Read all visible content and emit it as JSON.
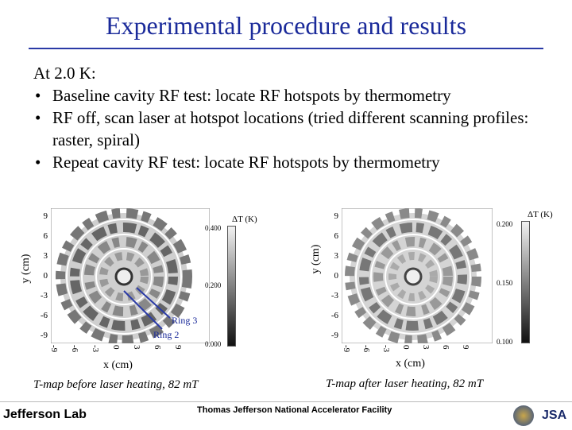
{
  "title": "Experimental procedure and results",
  "intro": "At 2.0 K:",
  "bullets": [
    "Baseline cavity RF test: locate RF hotspots by thermometry",
    "RF off, scan laser at hotspot locations (tried different scanning profiles: raster, spiral)",
    "Repeat cavity RF test: locate RF hotspots by thermometry"
  ],
  "left_plot": {
    "y_label": "y (cm)",
    "x_label": "x (cm)",
    "y_ticks": [
      "9",
      "6",
      "3",
      "0",
      "-3",
      "-6",
      "-9"
    ],
    "x_ticks": [
      "-9",
      "-6",
      "-3",
      "0",
      "3",
      "6",
      "9"
    ],
    "cb_title": "ΔT (K)",
    "cb_ticks": [
      "0.400",
      "0.200",
      "0.000"
    ],
    "ring3": "Ring 3",
    "ring2": "Ring 2",
    "caption": "T-map  before  laser  heating,  82 mT"
  },
  "right_plot": {
    "y_label": "y (cm)",
    "x_label": "x (cm)",
    "y_ticks": [
      "9",
      "6",
      "3",
      "0",
      "-3",
      "-6",
      "-9"
    ],
    "x_ticks": [
      "-9",
      "-6",
      "-3",
      "0",
      "3",
      "6",
      "9"
    ],
    "cb_title": "ΔT (K)",
    "cb_ticks": [
      "0.200",
      "0.150",
      "0.100"
    ],
    "caption": "T-map after laser heating, 82 mT"
  },
  "footer": {
    "lab_name": "Jefferson Lab",
    "facility": "Thomas Jefferson National Accelerator Facility",
    "logo2": "JSA"
  }
}
